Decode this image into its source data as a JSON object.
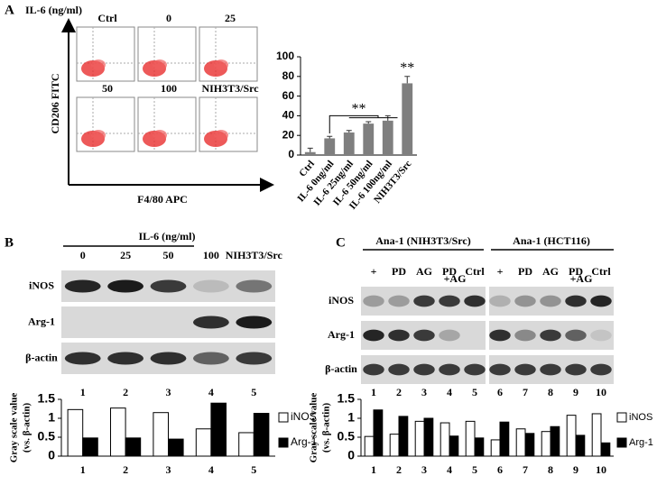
{
  "panels": {
    "A": {
      "label": "A",
      "title": "IL-6 (ng/ml)",
      "flow_labels": [
        "Ctrl",
        "0",
        "25",
        "50",
        "100",
        "NIH3T3/Src"
      ],
      "y_axis": "CD206 FITC",
      "x_axis": "F4/80 APC"
    },
    "B": {
      "label": "B",
      "treatment": "IL-6 (ng/ml)",
      "lanes": [
        "0",
        "25",
        "50",
        "100",
        "NIH3T3/Src"
      ],
      "rows": [
        "iNOS",
        "Arg-1",
        "β-actin"
      ],
      "lane_numbers": [
        "1",
        "2",
        "3",
        "4",
        "5"
      ]
    },
    "C": {
      "label": "C",
      "groups": [
        "Ana-1 (NIH3T3/Src)",
        "Ana-1 (HCT116)"
      ],
      "lanes": [
        "+",
        "PD",
        "AG",
        "PD",
        "Ctrl",
        "+",
        "PD",
        "AG",
        "PD",
        "Ctrl"
      ],
      "combo_label": "+AG",
      "rows": [
        "iNOS",
        "Arg-1",
        "β-actin"
      ],
      "lane_numbers": [
        "1",
        "2",
        "3",
        "4",
        "5",
        "6",
        "7",
        "8",
        "9",
        "10"
      ]
    }
  },
  "chart_data": [
    {
      "type": "bar",
      "categories": [
        "Ctrl",
        "IL-6  0ng/ml",
        "IL-6  25ng/ml",
        "IL-6  50ng/ml",
        "IL-6  100ng/ml",
        "NIH3T3/Src"
      ],
      "values": [
        3,
        17,
        23,
        32,
        35,
        73
      ],
      "errors": [
        4,
        2,
        2,
        2,
        5,
        7
      ],
      "color": "#7f7f7f",
      "ylim": [
        0,
        100
      ],
      "yticks": [
        0,
        20,
        40,
        60,
        80,
        100
      ],
      "annotations": [
        "**",
        "**"
      ]
    },
    {
      "type": "grouped_bar",
      "categories": [
        "1",
        "2",
        "3",
        "4",
        "5"
      ],
      "series": [
        {
          "name": "iNOS",
          "color": "#ffffff",
          "values": [
            1.23,
            1.27,
            1.15,
            0.72,
            0.62
          ]
        },
        {
          "name": "Arg-1",
          "color": "#000000",
          "values": [
            0.48,
            0.48,
            0.45,
            1.4,
            1.13
          ]
        }
      ],
      "ylim": [
        0,
        1.5
      ],
      "yticks": [
        0,
        0.5,
        1,
        1.5
      ],
      "y_label": [
        "Gray scale value",
        "(vs. β-actin)"
      ],
      "legend": "right"
    },
    {
      "type": "grouped_bar",
      "categories": [
        "1",
        "2",
        "3",
        "4",
        "5",
        "6",
        "7",
        "8",
        "9",
        "10"
      ],
      "series": [
        {
          "name": "iNOS",
          "color": "#ffffff",
          "values": [
            0.52,
            0.58,
            0.92,
            0.88,
            0.92,
            0.43,
            0.72,
            0.65,
            1.08,
            1.12
          ]
        },
        {
          "name": "Arg-1",
          "color": "#000000",
          "values": [
            1.22,
            1.05,
            1.0,
            0.53,
            0.48,
            0.9,
            0.6,
            0.78,
            0.55,
            0.35
          ]
        }
      ],
      "ylim": [
        0,
        1.5
      ],
      "yticks": [
        0,
        0.5,
        1,
        1.5
      ],
      "y_label": [
        "Gray scale value",
        "(vs. β-actin)"
      ],
      "legend": "right"
    }
  ]
}
